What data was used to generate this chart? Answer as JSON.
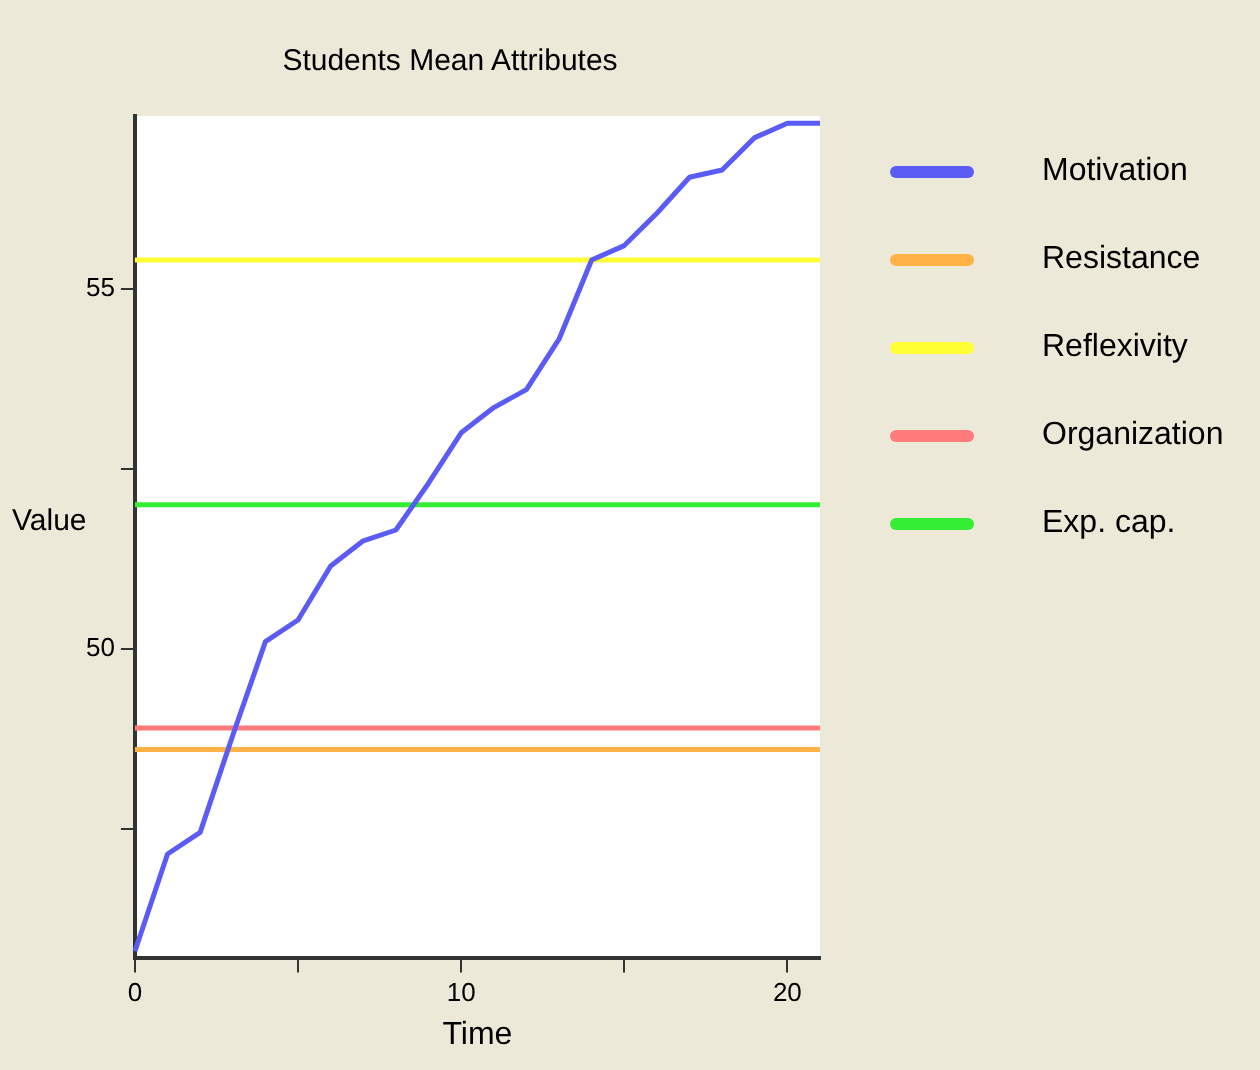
{
  "chart_data": {
    "type": "line",
    "title": "Students Mean Attributes",
    "xlabel": "Time",
    "ylabel": "Value",
    "x": [
      0,
      1,
      2,
      3,
      4,
      5,
      6,
      7,
      8,
      9,
      10,
      11,
      12,
      13,
      14,
      15,
      16,
      17,
      18,
      19,
      20,
      21
    ],
    "series": [
      {
        "name": "Motivation",
        "color": "#5a5cf5",
        "values": [
          45.8,
          47.15,
          47.45,
          48.8,
          50.1,
          50.4,
          51.15,
          51.5,
          51.65,
          52.3,
          53.0,
          53.35,
          53.6,
          54.3,
          55.4,
          55.6,
          56.05,
          56.55,
          56.65,
          57.1,
          57.3,
          57.3
        ]
      },
      {
        "name": "Resistance",
        "color": "#ffb347",
        "values": [
          48.6,
          48.6,
          48.6,
          48.6,
          48.6,
          48.6,
          48.6,
          48.6,
          48.6,
          48.6,
          48.6,
          48.6,
          48.6,
          48.6,
          48.6,
          48.6,
          48.6,
          48.6,
          48.6,
          48.6,
          48.6,
          48.6
        ]
      },
      {
        "name": "Reflexivity",
        "color": "#ffff33",
        "values": [
          55.4,
          55.4,
          55.4,
          55.4,
          55.4,
          55.4,
          55.4,
          55.4,
          55.4,
          55.4,
          55.4,
          55.4,
          55.4,
          55.4,
          55.4,
          55.4,
          55.4,
          55.4,
          55.4,
          55.4,
          55.4,
          55.4
        ]
      },
      {
        "name": "Organization",
        "color": "#ff7b7b",
        "values": [
          48.9,
          48.9,
          48.9,
          48.9,
          48.9,
          48.9,
          48.9,
          48.9,
          48.9,
          48.9,
          48.9,
          48.9,
          48.9,
          48.9,
          48.9,
          48.9,
          48.9,
          48.9,
          48.9,
          48.9,
          48.9,
          48.9
        ]
      },
      {
        "name": "Exp. cap.",
        "color": "#33ee33",
        "values": [
          52.0,
          52.0,
          52.0,
          52.0,
          52.0,
          52.0,
          52.0,
          52.0,
          52.0,
          52.0,
          52.0,
          52.0,
          52.0,
          52.0,
          52.0,
          52.0,
          52.0,
          52.0,
          52.0,
          52.0,
          52.0,
          52.0
        ]
      }
    ],
    "xlim": [
      0,
      21
    ],
    "xticks": [
      0,
      {
        "value": 5,
        "label": null
      },
      10,
      {
        "value": 15,
        "label": null
      },
      20
    ],
    "ylim": [
      45.7,
      57.4
    ],
    "yticks": [
      {
        "value": 47.5,
        "label": null
      },
      50,
      {
        "value": 52.5,
        "label": null
      },
      55
    ],
    "grid": false,
    "legend": "right",
    "marker": "none",
    "line_style": "solid"
  }
}
